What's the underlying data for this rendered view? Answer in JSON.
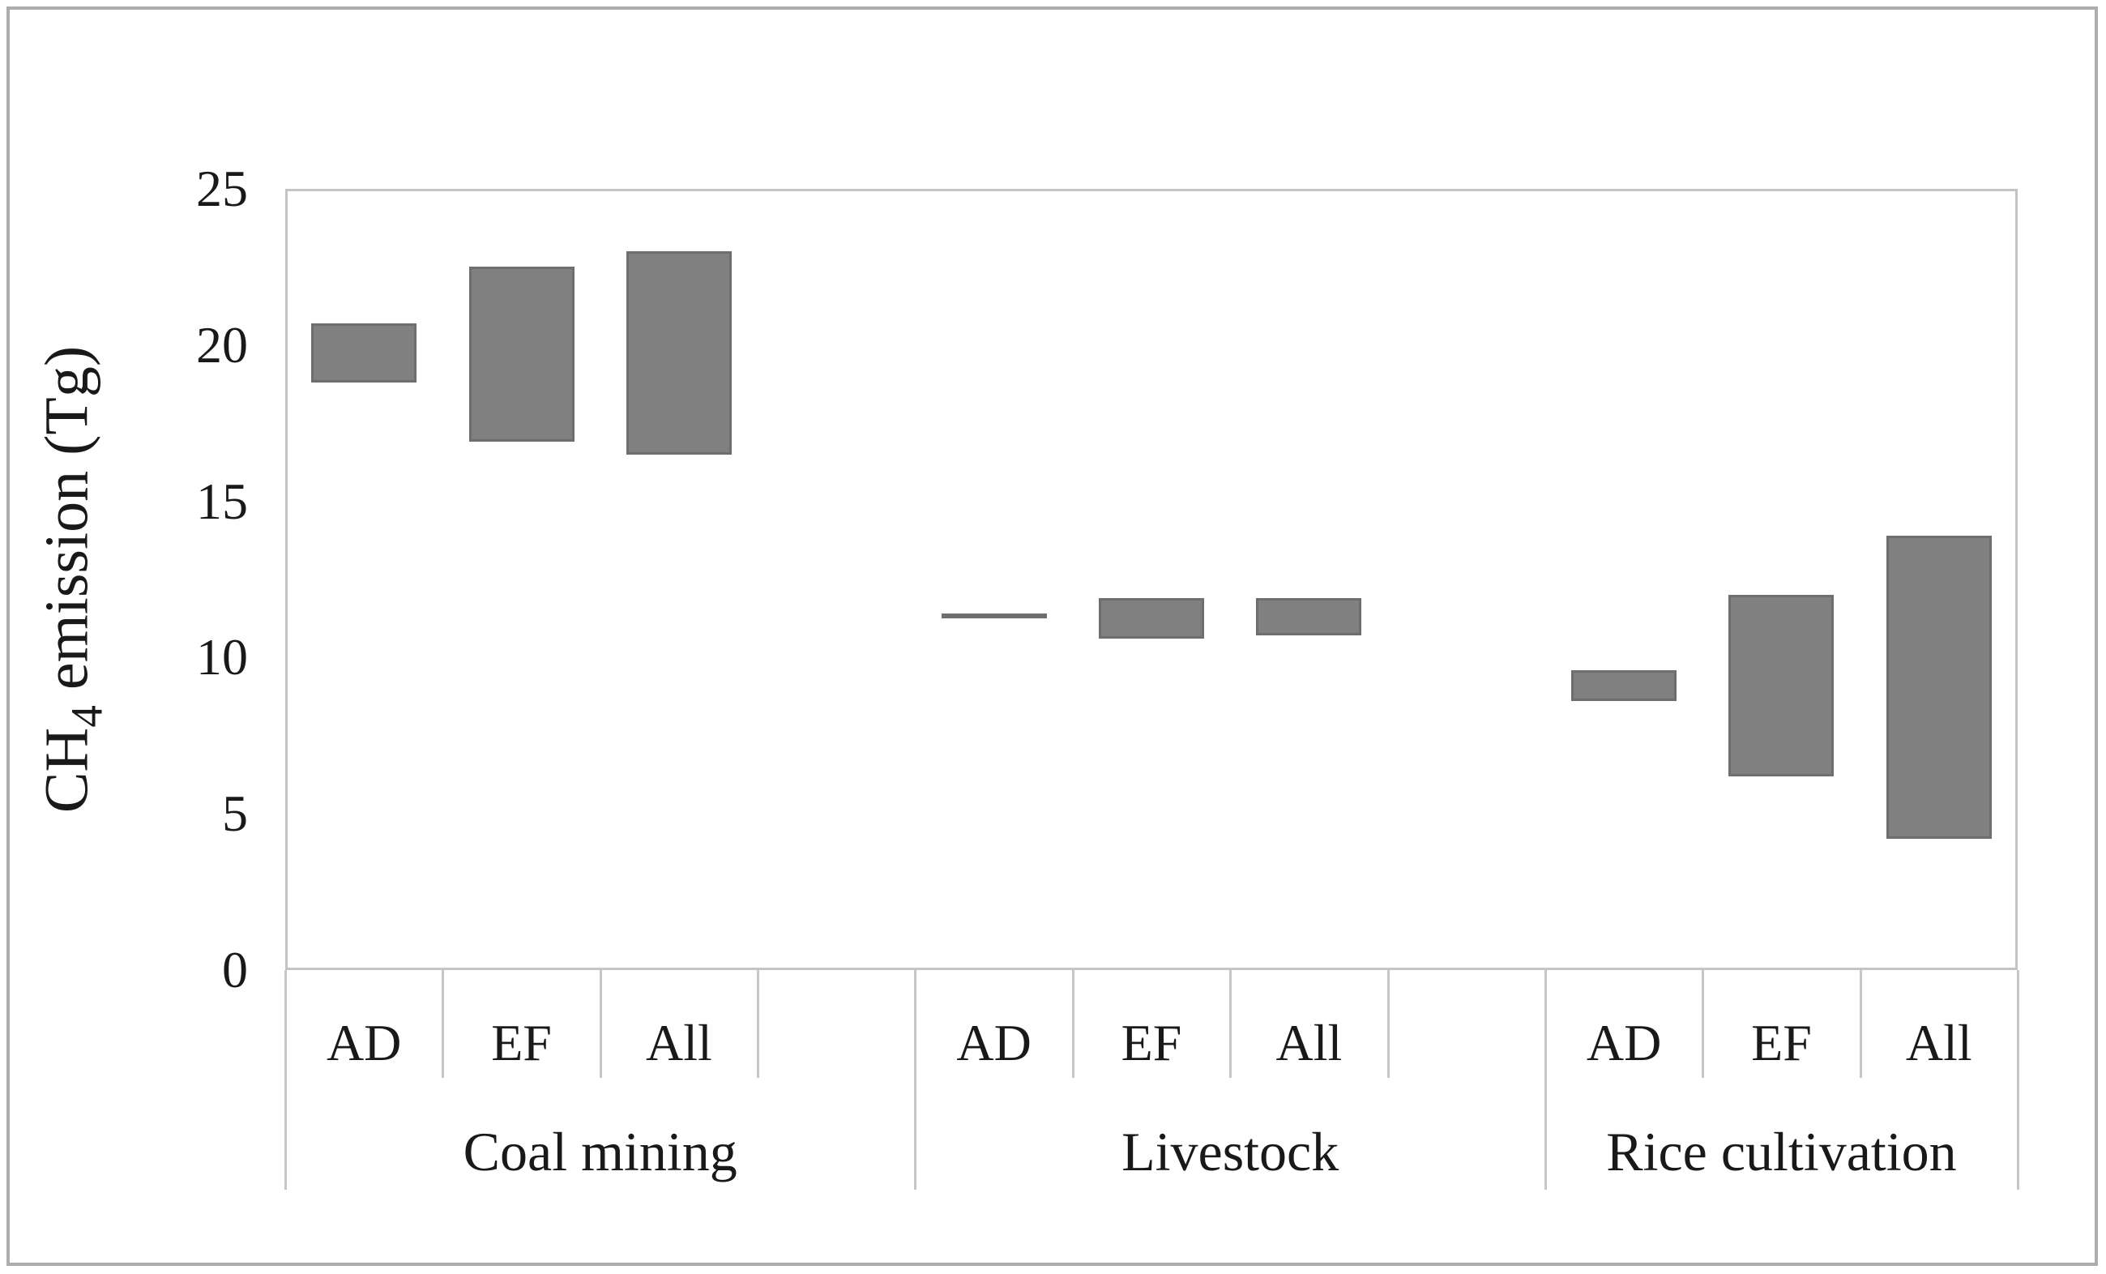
{
  "chart_data": {
    "type": "bar",
    "subtype": "floating-range-bars",
    "title": "",
    "ylabel": "CH4 emission (Tg)",
    "ylabel_parts": {
      "pre": "CH",
      "sub": "4",
      "post": " emission (Tg)"
    },
    "ylim": [
      0,
      25
    ],
    "yticks": [
      0,
      5,
      10,
      15,
      20,
      25
    ],
    "grid": false,
    "legend": false,
    "bar_color": "#808080",
    "bar_border_color": "#6e6e6e",
    "axis_color": "#c4c4c4",
    "groups": [
      {
        "label": "Coal mining",
        "bars": [
          {
            "label": "AD",
            "min": 18.8,
            "max": 20.7
          },
          {
            "label": "EF",
            "min": 16.9,
            "max": 22.5
          },
          {
            "label": "All",
            "min": 16.5,
            "max": 23.0
          }
        ]
      },
      {
        "label": "Livestock",
        "bars": [
          {
            "label": "AD",
            "min": 11.3,
            "max": 11.4
          },
          {
            "label": "EF",
            "min": 10.6,
            "max": 11.9
          },
          {
            "label": "All",
            "min": 10.7,
            "max": 11.9
          }
        ]
      },
      {
        "label": "Rice cultivation",
        "bars": [
          {
            "label": "AD",
            "min": 8.6,
            "max": 9.6
          },
          {
            "label": "EF",
            "min": 6.2,
            "max": 12.0
          },
          {
            "label": "All",
            "min": 4.2,
            "max": 13.9
          }
        ]
      }
    ]
  }
}
